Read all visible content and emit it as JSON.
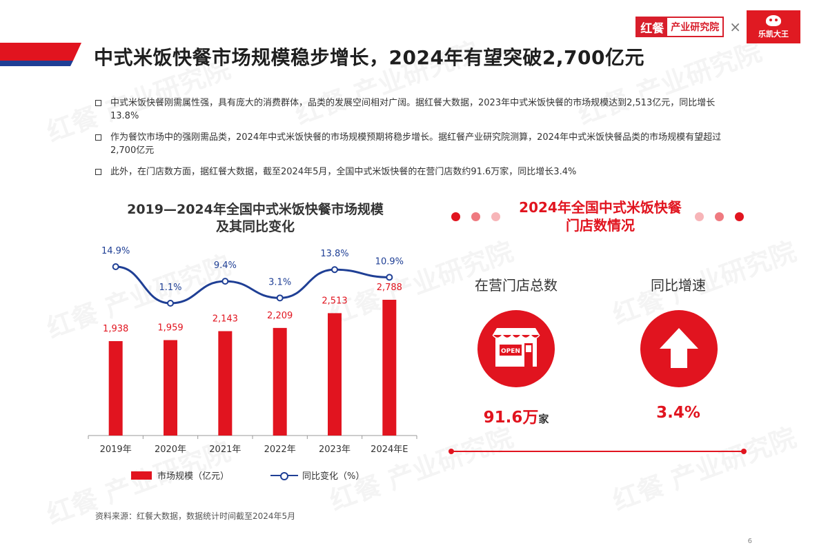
{
  "header": {
    "title": "中式米饭快餐市场规模稳步增长，2024年有望突破2,700亿元",
    "logo_hc_a": "红餐",
    "logo_hc_b": "产业研究院",
    "logo_sep": "×",
    "logo_brand": "乐凯大王"
  },
  "watermark_text": "红餐 产业研究院",
  "bullets": [
    "中式米饭快餐刚需属性强，具有庞大的消费群体，品类的发展空间相对广阔。据红餐大数据，2023年中式米饭快餐的市场规模达到2,513亿元，同比增长13.8%",
    "作为餐饮市场中的强刚需品类，2024年中式米饭快餐的市场规模预期将稳步增长。据红餐产业研究院测算，2024年中式米饭快餐品类的市场规模有望超过2,700亿元",
    "此外，在门店数方面，据红餐大数据，截至2024年5月，全国中式米饭快餐的在营门店数约91.6万家，同比增长3.4%"
  ],
  "chart_data": {
    "type": "bar+line",
    "title_line1": "2019—2024年全国中式米饭快餐市场规模",
    "title_line2": "及其同比变化",
    "categories": [
      "2019年",
      "2020年",
      "2021年",
      "2022年",
      "2023年",
      "2024年E"
    ],
    "series": [
      {
        "name": "市场规模（亿元）",
        "type": "bar",
        "values": [
          1938,
          1959,
          2143,
          2209,
          2513,
          2788
        ],
        "labels": [
          "1,938",
          "1,959",
          "2,143",
          "2,209",
          "2,513",
          "2,788"
        ]
      },
      {
        "name": "同比变化（%）",
        "type": "line",
        "values": [
          14.9,
          1.1,
          9.4,
          3.1,
          13.8,
          10.9
        ],
        "labels": [
          "14.9%",
          "1.1%",
          "9.4%",
          "3.1%",
          "13.8%",
          "10.9%"
        ]
      }
    ],
    "bar_ylim": [
      0,
      2788
    ],
    "line_ylim": [
      1.1,
      14.9
    ],
    "colors": {
      "bar": "#e1141f",
      "line": "#1f3f95"
    }
  },
  "legend": {
    "bar_label": "市场规模（亿元）",
    "line_label": "同比变化（%）"
  },
  "source": "资料来源：红餐大数据，数据统计时间截至2024年5月",
  "stores": {
    "title_line1": "2024年全国中式米饭快餐",
    "title_line2": "门店数情况",
    "count_label": "在营门店总数",
    "count_value": "91.6万",
    "count_unit": "家",
    "growth_label": "同比增速",
    "growth_value": "3.4%",
    "open_sign": "OPEN"
  },
  "colors": {
    "accent": "#e1141f",
    "navy": "#1f3f95"
  },
  "page_number": "6"
}
